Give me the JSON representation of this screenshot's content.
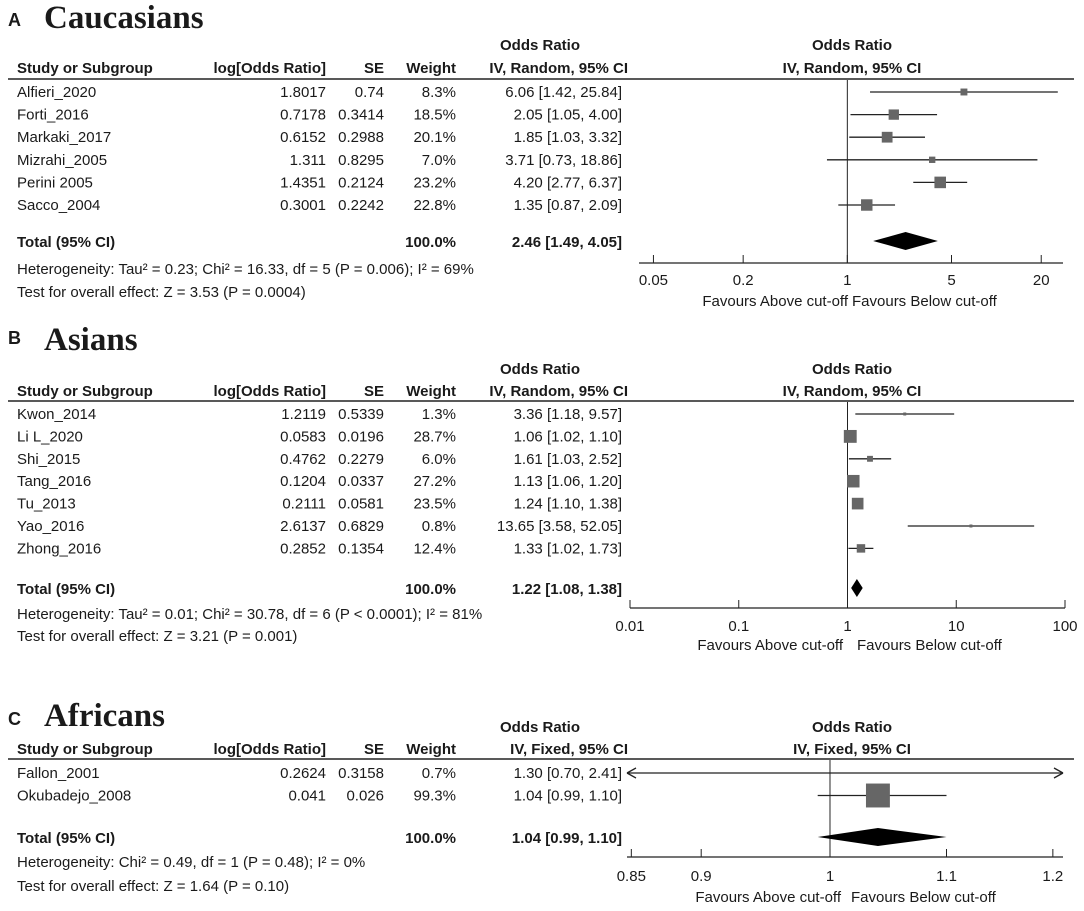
{
  "chart_data": [
    {
      "type": "forest",
      "panel": "A",
      "title": "Caucasians",
      "headers": {
        "study": "Study or Subgroup",
        "log": "log[Odds Ratio]",
        "se": "SE",
        "weight": "Weight",
        "or_top": "Odds Ratio",
        "or_method": "IV, Random, 95% CI",
        "plot_top": "Odds Ratio",
        "plot_method": "IV, Random, 95% CI"
      },
      "studies": [
        {
          "name": "Alfieri_2020",
          "log": "1.8017",
          "se": "0.74",
          "weight_label": "8.3%",
          "weight": 8.3,
          "ci_label": "6.06 [1.42, 25.84]",
          "or": 6.06,
          "lo": 1.42,
          "hi": 25.84
        },
        {
          "name": "Forti_2016",
          "log": "0.7178",
          "se": "0.3414",
          "weight_label": "18.5%",
          "weight": 18.5,
          "ci_label": "2.05 [1.05, 4.00]",
          "or": 2.05,
          "lo": 1.05,
          "hi": 4.0
        },
        {
          "name": "Markaki_2017",
          "log": "0.6152",
          "se": "0.2988",
          "weight_label": "20.1%",
          "weight": 20.1,
          "ci_label": "1.85 [1.03, 3.32]",
          "or": 1.85,
          "lo": 1.03,
          "hi": 3.32
        },
        {
          "name": "Mizrahi_2005",
          "log": "1.311",
          "se": "0.8295",
          "weight_label": "7.0%",
          "weight": 7.0,
          "ci_label": "3.71 [0.73, 18.86]",
          "or": 3.71,
          "lo": 0.73,
          "hi": 18.86
        },
        {
          "name": "Perini 2005",
          "log": "1.4351",
          "se": "0.2124",
          "weight_label": "23.2%",
          "weight": 23.2,
          "ci_label": "4.20 [2.77, 6.37]",
          "or": 4.2,
          "lo": 2.77,
          "hi": 6.37
        },
        {
          "name": "Sacco_2004",
          "log": "0.3001",
          "se": "0.2242",
          "weight_label": "22.8%",
          "weight": 22.8,
          "ci_label": "1.35 [0.87, 2.09]",
          "or": 1.35,
          "lo": 0.87,
          "hi": 2.09
        }
      ],
      "total": {
        "name": "Total (95% CI)",
        "weight_label": "100.0%",
        "ci_label": "2.46 [1.49, 4.05]",
        "or": 2.46,
        "lo": 1.49,
        "hi": 4.05
      },
      "heterogeneity": "Heterogeneity: Tau² = 0.23; Chi² = 16.33, df = 5 (P = 0.006); I² = 69%",
      "overall_effect": "Test for overall effect: Z = 3.53 (P = 0.0004)",
      "axis": {
        "scale": "log",
        "ticks": [
          0.05,
          0.2,
          1,
          5,
          20
        ],
        "tick_labels": [
          "0.05",
          "0.2",
          "1",
          "5",
          "20"
        ],
        "min": 0.04,
        "max": 28,
        "left_label": "Favours Above cut-off",
        "right_label": "Favours Below cut-off"
      }
    },
    {
      "type": "forest",
      "panel": "B",
      "title": "Asians",
      "headers": {
        "study": "Study or Subgroup",
        "log": "log[Odds Ratio]",
        "se": "SE",
        "weight": "Weight",
        "or_top": "Odds Ratio",
        "or_method": "IV, Random, 95% CI",
        "plot_top": "Odds Ratio",
        "plot_method": "IV, Random, 95% CI"
      },
      "studies": [
        {
          "name": "Kwon_2014",
          "log": "1.2119",
          "se": "0.5339",
          "weight_label": "1.3%",
          "weight": 1.3,
          "ci_label": "3.36 [1.18, 9.57]",
          "or": 3.36,
          "lo": 1.18,
          "hi": 9.57
        },
        {
          "name": "Li L_2020",
          "log": "0.0583",
          "se": "0.0196",
          "weight_label": "28.7%",
          "weight": 28.7,
          "ci_label": "1.06 [1.02, 1.10]",
          "or": 1.06,
          "lo": 1.02,
          "hi": 1.1
        },
        {
          "name": "Shi_2015",
          "log": "0.4762",
          "se": "0.2279",
          "weight_label": "6.0%",
          "weight": 6.0,
          "ci_label": "1.61 [1.03, 2.52]",
          "or": 1.61,
          "lo": 1.03,
          "hi": 2.52
        },
        {
          "name": "Tang_2016",
          "log": "0.1204",
          "se": "0.0337",
          "weight_label": "27.2%",
          "weight": 27.2,
          "ci_label": "1.13 [1.06, 1.20]",
          "or": 1.13,
          "lo": 1.06,
          "hi": 1.2
        },
        {
          "name": "Tu_2013",
          "log": "0.2111",
          "se": "0.0581",
          "weight_label": "23.5%",
          "weight": 23.5,
          "ci_label": "1.24 [1.10, 1.38]",
          "or": 1.24,
          "lo": 1.1,
          "hi": 1.38
        },
        {
          "name": "Yao_2016",
          "log": "2.6137",
          "se": "0.6829",
          "weight_label": "0.8%",
          "weight": 0.8,
          "ci_label": "13.65 [3.58, 52.05]",
          "or": 13.65,
          "lo": 3.58,
          "hi": 52.05
        },
        {
          "name": "Zhong_2016",
          "log": "0.2852",
          "se": "0.1354",
          "weight_label": "12.4%",
          "weight": 12.4,
          "ci_label": "1.33 [1.02, 1.73]",
          "or": 1.33,
          "lo": 1.02,
          "hi": 1.73
        }
      ],
      "total": {
        "name": "Total (95% CI)",
        "weight_label": "100.0%",
        "ci_label": "1.22 [1.08, 1.38]",
        "or": 1.22,
        "lo": 1.08,
        "hi": 1.38
      },
      "heterogeneity": "Heterogeneity: Tau² = 0.01; Chi² = 30.78, df = 6 (P < 0.0001); I² = 81%",
      "overall_effect": "Test for overall effect: Z = 3.21 (P = 0.001)",
      "axis": {
        "scale": "log",
        "ticks": [
          0.01,
          0.1,
          1,
          10,
          100
        ],
        "tick_labels": [
          "0.01",
          "0.1",
          "1",
          "10",
          "100"
        ],
        "min": 0.01,
        "max": 100,
        "left_label": "Favours Above cut-off",
        "right_label": "Favours Below cut-off"
      }
    },
    {
      "type": "forest",
      "panel": "C",
      "title": "Africans",
      "headers": {
        "study": "Study or Subgroup",
        "log": "log[Odds Ratio]",
        "se": "SE",
        "weight": "Weight",
        "or_top": "Odds Ratio",
        "or_method": "IV, Fixed, 95% CI",
        "plot_top": "Odds Ratio",
        "plot_method": "IV, Fixed, 95% CI"
      },
      "studies": [
        {
          "name": "Fallon_2001",
          "log": "0.2624",
          "se": "0.3158",
          "weight_label": "0.7%",
          "weight": 0.7,
          "ci_label": "1.30 [0.70, 2.41]",
          "or": 1.3,
          "lo": 0.7,
          "hi": 2.41
        },
        {
          "name": "Okubadejo_2008",
          "log": "0.041",
          "se": "0.026",
          "weight_label": "99.3%",
          "weight": 99.3,
          "ci_label": "1.04 [0.99, 1.10]",
          "or": 1.04,
          "lo": 0.99,
          "hi": 1.1
        }
      ],
      "total": {
        "name": "Total (95% CI)",
        "weight_label": "100.0%",
        "ci_label": "1.04 [0.99, 1.10]",
        "or": 1.04,
        "lo": 0.99,
        "hi": 1.1
      },
      "heterogeneity": "Heterogeneity: Chi² = 0.49, df = 1 (P = 0.48); I² = 0%",
      "overall_effect": "Test for overall effect: Z = 1.64 (P = 0.10)",
      "axis": {
        "scale": "log",
        "ticks": [
          0.85,
          0.9,
          1,
          1.1,
          1.2
        ],
        "tick_labels": [
          "0.85",
          "0.9",
          "1",
          "1.1",
          "1.2"
        ],
        "min": 0.847,
        "max": 1.21,
        "left_label": "Favours Above cut-off",
        "right_label": "Favours Below cut-off"
      }
    }
  ]
}
